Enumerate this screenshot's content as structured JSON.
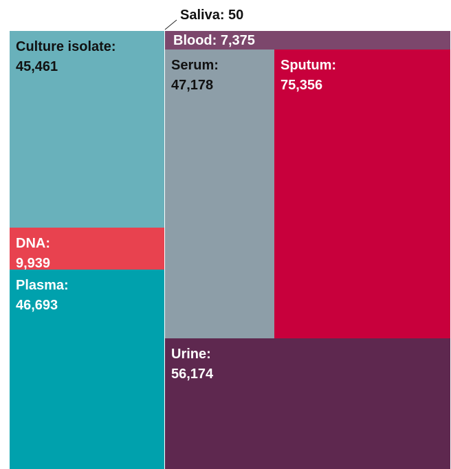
{
  "chart_data": {
    "type": "treemap",
    "title": "",
    "items": [
      {
        "name": "Culture isolate",
        "label": "Culture isolate:",
        "value_text": "45,461",
        "value": 45461,
        "color": "#69b1bb",
        "text_color": "#111111"
      },
      {
        "name": "DNA",
        "label": "DNA:",
        "value_text": "9,939",
        "value": 9939,
        "color": "#e8424f",
        "text_color": "#ffffff"
      },
      {
        "name": "Plasma",
        "label": "Plasma:",
        "value_text": "46,693",
        "value": 46693,
        "color": "#00a1ad",
        "text_color": "#ffffff"
      },
      {
        "name": "Saliva",
        "label": "Saliva:",
        "value_text": "50",
        "value": 50,
        "color": "#ffffff",
        "text_color": "#111111"
      },
      {
        "name": "Blood",
        "label": "Blood:",
        "value_text": "7,375",
        "value": 7375,
        "color": "#7c476c",
        "text_color": "#ffffff"
      },
      {
        "name": "Serum",
        "label": "Serum:",
        "value_text": "47,178",
        "value": 47178,
        "color": "#8d9ea8",
        "text_color": "#111111"
      },
      {
        "name": "Sputum",
        "label": "Sputum:",
        "value_text": "75,356",
        "value": 75356,
        "color": "#c8003c",
        "text_color": "#ffffff"
      },
      {
        "name": "Urine",
        "label": "Urine:",
        "value_text": "56,174",
        "value": 56174,
        "color": "#5e284f",
        "text_color": "#ffffff"
      }
    ]
  }
}
